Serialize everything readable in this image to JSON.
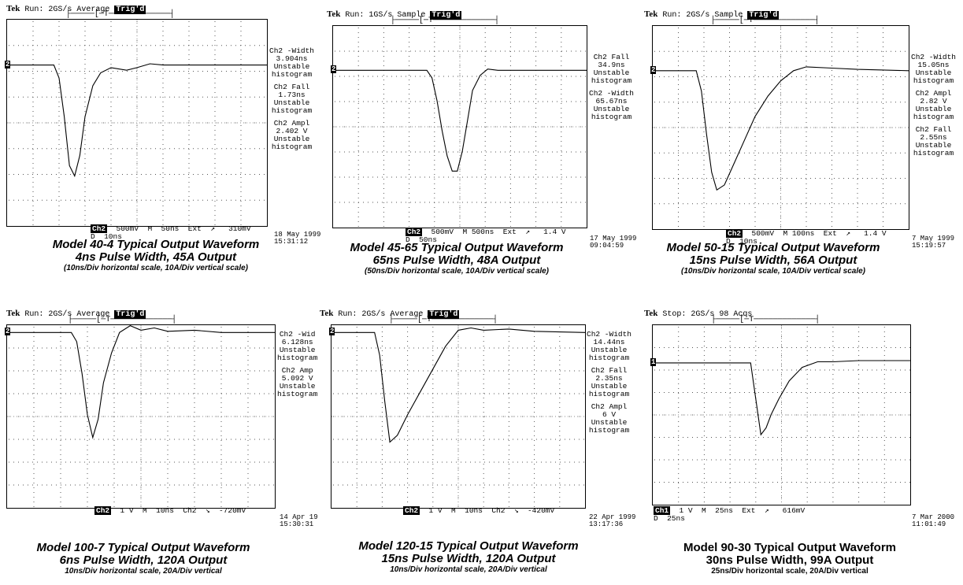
{
  "chart_data": [
    {
      "type": "line",
      "header": {
        "brand": "Tek",
        "run": "Run: 2GS/s",
        "mode": "Average",
        "trig": "Trig'd"
      },
      "measurements": [
        "Ch2 -Width\n3.904ns\nUnstable\nhistogram",
        "Ch2 Fall\n1.73ns\nUnstable\nhistogram",
        "Ch2 Ampl\n2.402 V\nUnstable\nhistogram"
      ],
      "bottom": {
        "ch": "Ch2",
        "scale": "500mV",
        "tb": "M  50ns  Ext  ↗   310mV\nD  10ns"
      },
      "timestamp": "18 May 1999\n15:31:12",
      "marker": "2",
      "caption": [
        "Model 40-4 Typical Output Waveform",
        "4ns Pulse Width, 45A Output",
        "(10ns/Div horizontal scale, 10A/Div vertical scale)"
      ],
      "x": [
        0,
        1.8,
        2.0,
        2.2,
        2.4,
        2.6,
        2.8,
        3.0,
        3.3,
        3.6,
        4.0,
        4.6,
        5.0,
        5.5,
        6.0,
        7.0,
        10
      ],
      "y": [
        0,
        0,
        -0.5,
        -2.0,
        -3.9,
        -4.3,
        -3.5,
        -2.0,
        -0.8,
        -0.3,
        -0.1,
        -0.2,
        -0.1,
        0.05,
        0,
        0,
        0
      ]
    },
    {
      "type": "line",
      "header": {
        "brand": "Tek",
        "run": "Run: 1GS/s",
        "mode": "Sample",
        "trig": "Trig'd"
      },
      "measurements": [
        "Ch2 Fall\n34.9ns\nUnstable\nhistogram",
        "Ch2 -Width\n65.67ns\nUnstable\nhistogram"
      ],
      "bottom": {
        "ch": "Ch2",
        "scale": "500mV",
        "tb": "M 500ns  Ext  ↗   1.4 V\nD  50ns"
      },
      "timestamp": "17 May 1999\n09:04:59",
      "marker": "2",
      "caption": [
        "Model 45-65 Typical Output Waveform",
        "65ns Pulse Width, 48A Output",
        "(50ns/Div horizontal scale, 10A/Div vertical scale)"
      ],
      "x": [
        0,
        3.7,
        3.9,
        4.1,
        4.3,
        4.5,
        4.7,
        4.9,
        5.1,
        5.3,
        5.5,
        5.8,
        6.1,
        6.5,
        10
      ],
      "y": [
        0,
        0,
        -0.3,
        -1.2,
        -2.4,
        -3.4,
        -4.0,
        -4.0,
        -3.2,
        -2.0,
        -0.8,
        -0.2,
        0.05,
        0,
        0
      ]
    },
    {
      "type": "line",
      "header": {
        "brand": "Tek",
        "run": "Run: 2GS/s",
        "mode": "Sample",
        "trig": "Trig'd"
      },
      "measurements": [
        "Ch2 -Width\n15.05ns\nUnstable\nhistogram",
        "Ch2 Ampl\n2.82 V\nUnstable\nhistogram",
        "Ch2 Fall\n2.55ns\nUnstable\nhistogram"
      ],
      "bottom": {
        "ch": "Ch2",
        "scale": "500mV",
        "tb": "M 100ns  Ext  ↗   1.4 V\nD  10ns"
      },
      "timestamp": "7 May 1999\n15:19:57",
      "marker": "2",
      "caption": [
        "Model 50-15 Typical Output Waveform",
        "15ns Pulse Width, 56A Output",
        "(10ns/Div horizontal scale, 10A/Div vertical scale)"
      ],
      "x": [
        0,
        1.7,
        1.9,
        2.1,
        2.3,
        2.5,
        2.8,
        3.2,
        3.6,
        4.0,
        4.5,
        5.0,
        5.5,
        6.0,
        7.0,
        8.0,
        10
      ],
      "y": [
        0,
        0,
        -0.8,
        -2.5,
        -4.0,
        -4.7,
        -4.5,
        -3.6,
        -2.7,
        -1.8,
        -1.0,
        -0.4,
        0.0,
        0.15,
        0.1,
        0.05,
        0
      ]
    },
    {
      "type": "line",
      "header": {
        "brand": "Tek",
        "run": "Run: 2GS/s",
        "mode": "Average",
        "trig": "Trig'd"
      },
      "measurements": [
        "Ch2 -Wid\n6.128ns\nUnstable\nhistogram",
        "Ch2 Amp\n5.092 V\nUnstable\nhistogram"
      ],
      "bottom": {
        "ch": "Ch2",
        "scale": "1 V",
        "tb": "M  10ns  Ch2  ↘  -720mV"
      },
      "timestamp": "14 Apr 19\n15:30:31",
      "marker": "2",
      "caption": [
        "Model 100-7 Typical Output Waveform",
        "6ns Pulse Width, 120A Output",
        "10ns/Div horizontal scale, 20A/Div vertical"
      ],
      "x": [
        0,
        2.4,
        2.6,
        2.8,
        3.0,
        3.2,
        3.4,
        3.6,
        3.9,
        4.2,
        4.6,
        5.0,
        5.5,
        6.0,
        7.0,
        8.0,
        10
      ],
      "y": [
        0,
        0,
        -0.4,
        -1.8,
        -3.6,
        -4.6,
        -3.8,
        -2.2,
        -0.9,
        0.0,
        0.3,
        0.1,
        0.2,
        0.05,
        0.1,
        0,
        0
      ]
    },
    {
      "type": "line",
      "header": {
        "brand": "Tek",
        "run": "Run: 2GS/s",
        "mode": "Average",
        "trig": "Trig'd"
      },
      "measurements": [
        "Ch2 -Width\n14.44ns\nUnstable\nhistogram",
        "Ch2 Fall\n2.35ns\nUnstable\nhistogram",
        "Ch2 Ampl\n6 V\nUnstable\nhistogram"
      ],
      "bottom": {
        "ch": "Ch2",
        "scale": "1 V",
        "tb": "M  10ns  Ch2  ↘  -420mV"
      },
      "timestamp": "22 Apr 1999\n13:17:36",
      "marker": "2",
      "caption": [
        "Model 120-15 Typical Output Waveform",
        "15ns Pulse Width, 120A Output",
        "10ns/Div horizontal scale, 20A/Div vertical"
      ],
      "x": [
        0,
        1.7,
        1.9,
        2.1,
        2.3,
        2.6,
        3.0,
        3.5,
        4.0,
        4.5,
        5.0,
        5.5,
        6.0,
        7.0,
        8.0,
        10
      ],
      "y": [
        0,
        0,
        -1.0,
        -3.0,
        -4.8,
        -4.5,
        -3.6,
        -2.6,
        -1.6,
        -0.6,
        0.1,
        0.2,
        0.1,
        0.15,
        0.05,
        0
      ]
    },
    {
      "type": "line",
      "header": {
        "brand": "Tek",
        "run": "Stop: 2GS/s",
        "mode": "98 Acqs",
        "trig": ""
      },
      "measurements": [],
      "bottom": {
        "ch": "Ch1",
        "scale": "1 V",
        "tb": "M  25ns  Ext  ↗   616mV\nD  25ns"
      },
      "timestamp": "7 Mar 2000\n11:01:49",
      "marker": "1",
      "caption": [
        "Model 90-30 Typical Output Waveform",
        "30ns Pulse Width, 99A Output",
        "25ns/Div horizontal scale, 20A/Div vertical"
      ],
      "x": [
        0,
        3.8,
        4.0,
        4.2,
        4.4,
        4.6,
        4.9,
        5.3,
        5.8,
        6.4,
        7.0,
        8.0,
        10
      ],
      "y": [
        0,
        0,
        -1.6,
        -3.2,
        -2.9,
        -2.3,
        -1.6,
        -0.8,
        -0.2,
        0.05,
        0.05,
        0.1,
        0.1
      ]
    }
  ]
}
